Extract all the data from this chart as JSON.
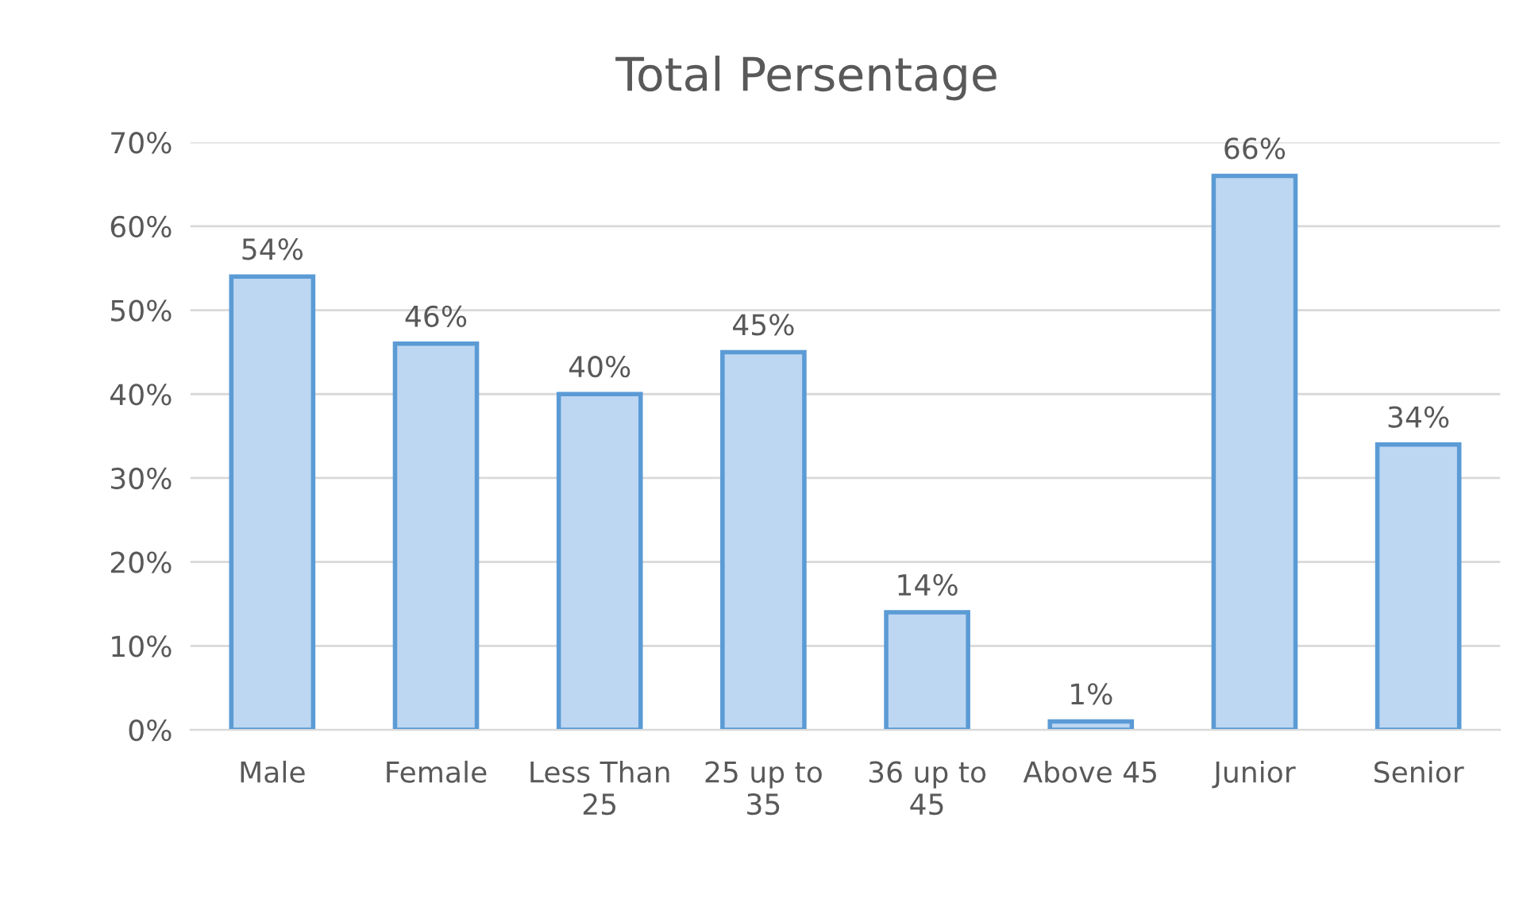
{
  "chart_data": {
    "type": "bar",
    "title": "Total Persentage",
    "categories": [
      "Male",
      "Female",
      "Less Than 25",
      "25 up to 35",
      "36 up to 45",
      "Above 45",
      "Junior",
      "Senior"
    ],
    "values": [
      54,
      46,
      40,
      45,
      14,
      1,
      66,
      34
    ],
    "value_labels": [
      "54%",
      "46%",
      "40%",
      "45%",
      "14%",
      "1%",
      "66%",
      "34%"
    ],
    "color": "#bdd7f3",
    "ylim": [
      0,
      70
    ],
    "yticks": [
      {
        "value": 0,
        "label": "0%"
      },
      {
        "value": 10,
        "label": "10%"
      },
      {
        "value": 20,
        "label": "20%"
      },
      {
        "value": 30,
        "label": "30%"
      },
      {
        "value": 40,
        "label": "40%"
      },
      {
        "value": 50,
        "label": "50%"
      },
      {
        "value": 60,
        "label": "60%"
      },
      {
        "value": 70,
        "label": "70%"
      }
    ],
    "grid": "y",
    "legend": false
  }
}
